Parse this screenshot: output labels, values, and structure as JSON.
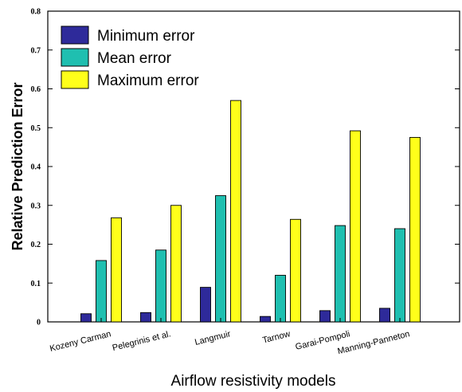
{
  "chart_data": {
    "type": "bar",
    "title": "",
    "xlabel": "Airflow resistivity models",
    "ylabel": "Relative Prediction Error",
    "ylim": [
      0,
      0.8
    ],
    "yticks": [
      "0",
      "0.1",
      "0.2",
      "0.3",
      "0.4",
      "0.5",
      "0.6",
      "0.7",
      "0.8"
    ],
    "ytick_values": [
      0,
      0.1,
      0.2,
      0.3,
      0.4,
      0.5,
      0.6,
      0.7,
      0.8
    ],
    "grid": false,
    "legend_position": "top-left",
    "categories": [
      "Kozeny Carman",
      "Pelegrinis et al.",
      "Langmuir",
      "Tarnow",
      "Garai-Pompoli",
      "Manning-Panneton"
    ],
    "series": [
      {
        "name": "Minimum error",
        "color": "#2e2a9a",
        "values": [
          0.021,
          0.024,
          0.089,
          0.014,
          0.029,
          0.035
        ]
      },
      {
        "name": "Mean error",
        "color": "#1fbfb0",
        "values": [
          0.158,
          0.185,
          0.325,
          0.12,
          0.248,
          0.24
        ]
      },
      {
        "name": "Maximum error",
        "color": "#ffff1a",
        "values": [
          0.268,
          0.3,
          0.57,
          0.264,
          0.492,
          0.475
        ]
      }
    ]
  }
}
